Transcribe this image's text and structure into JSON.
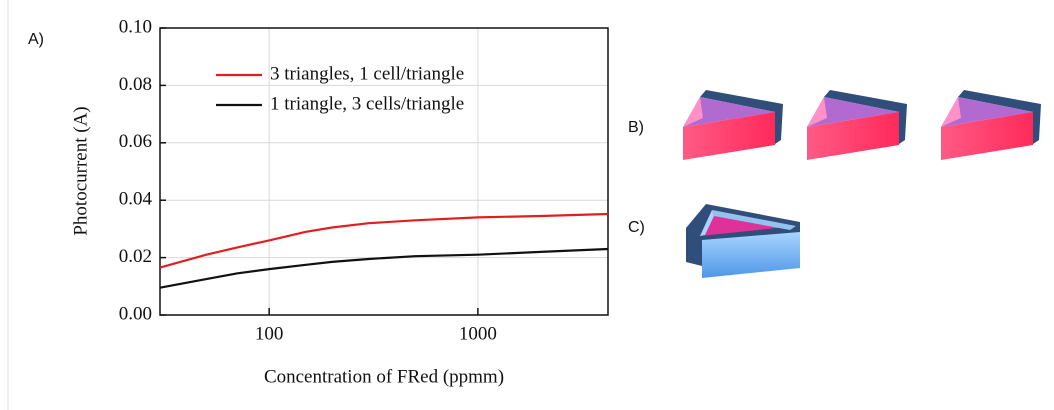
{
  "panel_labels": [
    "A)",
    "B)",
    "C)"
  ],
  "chart_data": {
    "type": "line",
    "x_label": "Concentration of FRed (ppmm)",
    "y_label": "Photocurrent (A)",
    "x": [
      30,
      50,
      70,
      100,
      150,
      200,
      300,
      500,
      1000,
      2000,
      4200
    ],
    "series": [
      {
        "name": "3 triangles, 1 cell/triangle",
        "color": "#e02020",
        "values": [
          0.0165,
          0.021,
          0.0235,
          0.026,
          0.029,
          0.0305,
          0.032,
          0.033,
          0.034,
          0.0345,
          0.0352
        ]
      },
      {
        "name": "1 triangle, 3 cells/triangle",
        "color": "#111111",
        "values": [
          0.0095,
          0.0125,
          0.0145,
          0.016,
          0.0175,
          0.0185,
          0.0195,
          0.0205,
          0.021,
          0.022,
          0.023
        ]
      }
    ],
    "xscale": "log",
    "xlim": [
      30,
      4200
    ],
    "xticks": [
      100,
      1000
    ],
    "ylim": [
      0,
      0.1
    ],
    "yticks": [
      {
        "value": 0,
        "label": "0.00"
      },
      {
        "value": 0.02,
        "label": "0.02"
      },
      {
        "value": 0.04,
        "label": "0.04"
      },
      {
        "value": 0.06,
        "label": "0.06"
      },
      {
        "value": 0.08,
        "label": "0.08"
      },
      {
        "value": 0.1,
        "label": "0.10"
      }
    ],
    "grid": true,
    "legend": "top"
  }
}
